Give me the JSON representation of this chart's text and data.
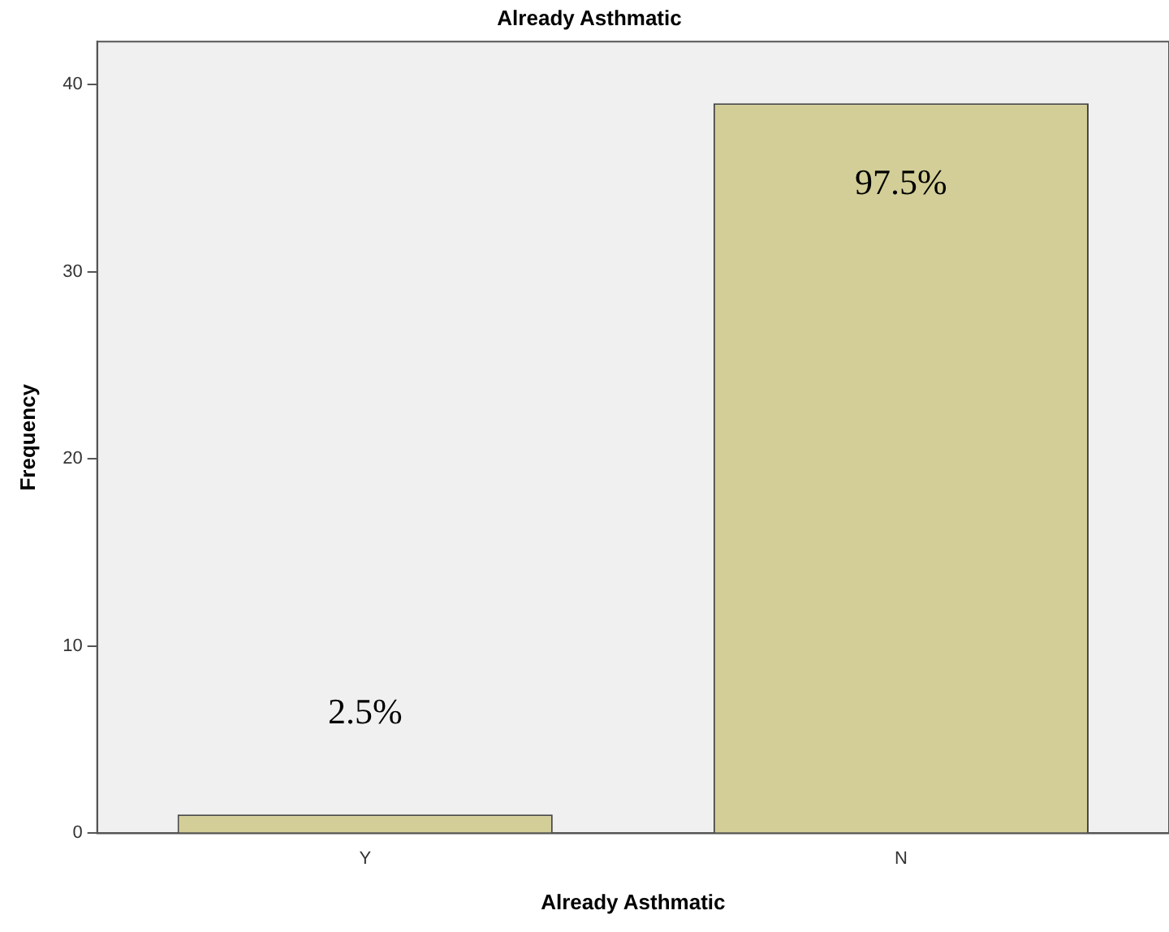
{
  "chart_data": {
    "type": "bar",
    "title": "Already Asthmatic",
    "xlabel": "Already Asthmatic",
    "ylabel": "Frequency",
    "categories": [
      "Y",
      "N"
    ],
    "values": [
      1,
      39
    ],
    "color": "#d3ce97",
    "annotations": [
      "2.5%",
      "97.5%"
    ],
    "ylim": [
      0,
      42.3
    ],
    "yticks": [
      0,
      10,
      20,
      30,
      40
    ],
    "grid": false,
    "legend": false
  }
}
